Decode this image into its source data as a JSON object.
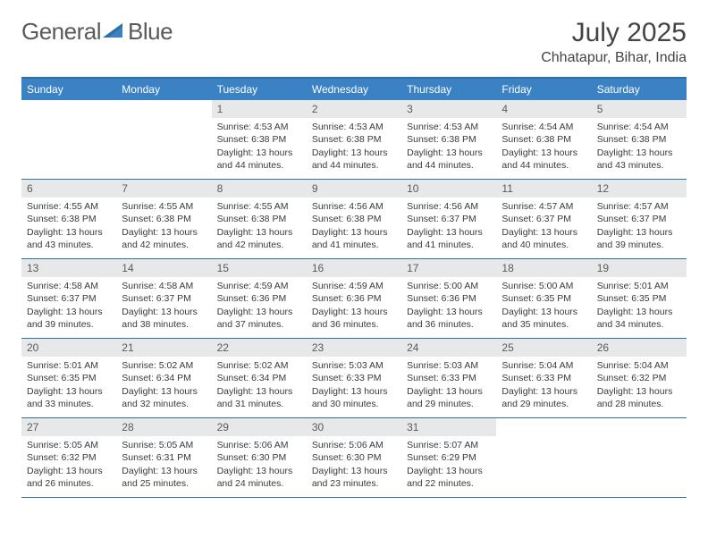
{
  "brand": {
    "part1": "General",
    "part2": "Blue"
  },
  "colors": {
    "header_bg": "#3b82c4",
    "header_text": "#ffffff",
    "border": "#2f6fa8",
    "daynum_bg": "#e6e8ea",
    "body_text": "#3a3a3a",
    "title_text": "#444444"
  },
  "title": "July 2025",
  "location": "Chhatapur, Bihar, India",
  "day_names": [
    "Sunday",
    "Monday",
    "Tuesday",
    "Wednesday",
    "Thursday",
    "Friday",
    "Saturday"
  ],
  "weeks": [
    [
      {
        "empty": true
      },
      {
        "empty": true
      },
      {
        "n": "1",
        "sr": "Sunrise: 4:53 AM",
        "ss": "Sunset: 6:38 PM",
        "dl1": "Daylight: 13 hours",
        "dl2": "and 44 minutes."
      },
      {
        "n": "2",
        "sr": "Sunrise: 4:53 AM",
        "ss": "Sunset: 6:38 PM",
        "dl1": "Daylight: 13 hours",
        "dl2": "and 44 minutes."
      },
      {
        "n": "3",
        "sr": "Sunrise: 4:53 AM",
        "ss": "Sunset: 6:38 PM",
        "dl1": "Daylight: 13 hours",
        "dl2": "and 44 minutes."
      },
      {
        "n": "4",
        "sr": "Sunrise: 4:54 AM",
        "ss": "Sunset: 6:38 PM",
        "dl1": "Daylight: 13 hours",
        "dl2": "and 44 minutes."
      },
      {
        "n": "5",
        "sr": "Sunrise: 4:54 AM",
        "ss": "Sunset: 6:38 PM",
        "dl1": "Daylight: 13 hours",
        "dl2": "and 43 minutes."
      }
    ],
    [
      {
        "n": "6",
        "sr": "Sunrise: 4:55 AM",
        "ss": "Sunset: 6:38 PM",
        "dl1": "Daylight: 13 hours",
        "dl2": "and 43 minutes."
      },
      {
        "n": "7",
        "sr": "Sunrise: 4:55 AM",
        "ss": "Sunset: 6:38 PM",
        "dl1": "Daylight: 13 hours",
        "dl2": "and 42 minutes."
      },
      {
        "n": "8",
        "sr": "Sunrise: 4:55 AM",
        "ss": "Sunset: 6:38 PM",
        "dl1": "Daylight: 13 hours",
        "dl2": "and 42 minutes."
      },
      {
        "n": "9",
        "sr": "Sunrise: 4:56 AM",
        "ss": "Sunset: 6:38 PM",
        "dl1": "Daylight: 13 hours",
        "dl2": "and 41 minutes."
      },
      {
        "n": "10",
        "sr": "Sunrise: 4:56 AM",
        "ss": "Sunset: 6:37 PM",
        "dl1": "Daylight: 13 hours",
        "dl2": "and 41 minutes."
      },
      {
        "n": "11",
        "sr": "Sunrise: 4:57 AM",
        "ss": "Sunset: 6:37 PM",
        "dl1": "Daylight: 13 hours",
        "dl2": "and 40 minutes."
      },
      {
        "n": "12",
        "sr": "Sunrise: 4:57 AM",
        "ss": "Sunset: 6:37 PM",
        "dl1": "Daylight: 13 hours",
        "dl2": "and 39 minutes."
      }
    ],
    [
      {
        "n": "13",
        "sr": "Sunrise: 4:58 AM",
        "ss": "Sunset: 6:37 PM",
        "dl1": "Daylight: 13 hours",
        "dl2": "and 39 minutes."
      },
      {
        "n": "14",
        "sr": "Sunrise: 4:58 AM",
        "ss": "Sunset: 6:37 PM",
        "dl1": "Daylight: 13 hours",
        "dl2": "and 38 minutes."
      },
      {
        "n": "15",
        "sr": "Sunrise: 4:59 AM",
        "ss": "Sunset: 6:36 PM",
        "dl1": "Daylight: 13 hours",
        "dl2": "and 37 minutes."
      },
      {
        "n": "16",
        "sr": "Sunrise: 4:59 AM",
        "ss": "Sunset: 6:36 PM",
        "dl1": "Daylight: 13 hours",
        "dl2": "and 36 minutes."
      },
      {
        "n": "17",
        "sr": "Sunrise: 5:00 AM",
        "ss": "Sunset: 6:36 PM",
        "dl1": "Daylight: 13 hours",
        "dl2": "and 36 minutes."
      },
      {
        "n": "18",
        "sr": "Sunrise: 5:00 AM",
        "ss": "Sunset: 6:35 PM",
        "dl1": "Daylight: 13 hours",
        "dl2": "and 35 minutes."
      },
      {
        "n": "19",
        "sr": "Sunrise: 5:01 AM",
        "ss": "Sunset: 6:35 PM",
        "dl1": "Daylight: 13 hours",
        "dl2": "and 34 minutes."
      }
    ],
    [
      {
        "n": "20",
        "sr": "Sunrise: 5:01 AM",
        "ss": "Sunset: 6:35 PM",
        "dl1": "Daylight: 13 hours",
        "dl2": "and 33 minutes."
      },
      {
        "n": "21",
        "sr": "Sunrise: 5:02 AM",
        "ss": "Sunset: 6:34 PM",
        "dl1": "Daylight: 13 hours",
        "dl2": "and 32 minutes."
      },
      {
        "n": "22",
        "sr": "Sunrise: 5:02 AM",
        "ss": "Sunset: 6:34 PM",
        "dl1": "Daylight: 13 hours",
        "dl2": "and 31 minutes."
      },
      {
        "n": "23",
        "sr": "Sunrise: 5:03 AM",
        "ss": "Sunset: 6:33 PM",
        "dl1": "Daylight: 13 hours",
        "dl2": "and 30 minutes."
      },
      {
        "n": "24",
        "sr": "Sunrise: 5:03 AM",
        "ss": "Sunset: 6:33 PM",
        "dl1": "Daylight: 13 hours",
        "dl2": "and 29 minutes."
      },
      {
        "n": "25",
        "sr": "Sunrise: 5:04 AM",
        "ss": "Sunset: 6:33 PM",
        "dl1": "Daylight: 13 hours",
        "dl2": "and 29 minutes."
      },
      {
        "n": "26",
        "sr": "Sunrise: 5:04 AM",
        "ss": "Sunset: 6:32 PM",
        "dl1": "Daylight: 13 hours",
        "dl2": "and 28 minutes."
      }
    ],
    [
      {
        "n": "27",
        "sr": "Sunrise: 5:05 AM",
        "ss": "Sunset: 6:32 PM",
        "dl1": "Daylight: 13 hours",
        "dl2": "and 26 minutes."
      },
      {
        "n": "28",
        "sr": "Sunrise: 5:05 AM",
        "ss": "Sunset: 6:31 PM",
        "dl1": "Daylight: 13 hours",
        "dl2": "and 25 minutes."
      },
      {
        "n": "29",
        "sr": "Sunrise: 5:06 AM",
        "ss": "Sunset: 6:30 PM",
        "dl1": "Daylight: 13 hours",
        "dl2": "and 24 minutes."
      },
      {
        "n": "30",
        "sr": "Sunrise: 5:06 AM",
        "ss": "Sunset: 6:30 PM",
        "dl1": "Daylight: 13 hours",
        "dl2": "and 23 minutes."
      },
      {
        "n": "31",
        "sr": "Sunrise: 5:07 AM",
        "ss": "Sunset: 6:29 PM",
        "dl1": "Daylight: 13 hours",
        "dl2": "and 22 minutes."
      },
      {
        "empty": true
      },
      {
        "empty": true
      }
    ]
  ]
}
